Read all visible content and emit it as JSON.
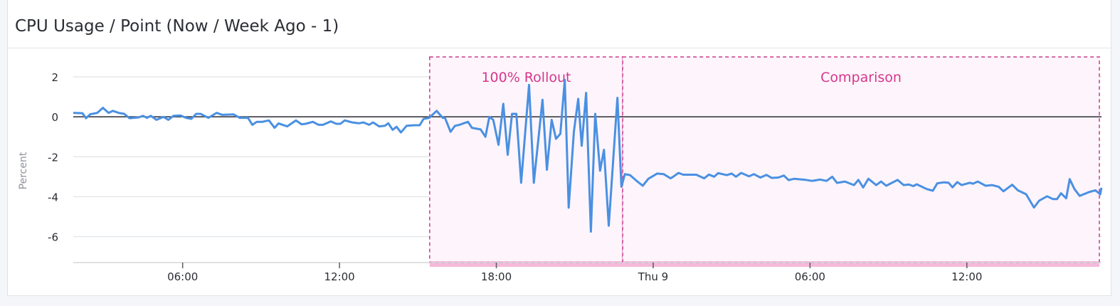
{
  "panel": {
    "title": "CPU Usage / Point (Now / Week Ago - 1)"
  },
  "colors": {
    "series": "#4a90e2",
    "marker": "#c93b8f",
    "marker_text": "#d6368d",
    "marker_fill": "#fdf5fb",
    "marker_band": "#f5b9da",
    "zero_line": "#2a2d33",
    "grid": "#e6e7ea"
  },
  "chart_data": {
    "type": "line",
    "title": "CPU Usage / Point (Now / Week Ago - 1)",
    "ylabel": "Percent",
    "xlabel": "",
    "xlim": [
      "Wed 01:49",
      "Thu 17:09"
    ],
    "ylim": [
      -7.3,
      3.0
    ],
    "grid": true,
    "y_ticks": [
      2,
      0,
      -2,
      -4,
      -6
    ],
    "x_ticks": [
      {
        "t": "Wed 06:00",
        "label": "06:00"
      },
      {
        "t": "Wed 12:00",
        "label": "12:00"
      },
      {
        "t": "Wed 18:00",
        "label": "18:00"
      },
      {
        "t": "Thu 00:00",
        "label": "Thu 9"
      },
      {
        "t": "Thu 06:00",
        "label": "06:00"
      },
      {
        "t": "Thu 12:00",
        "label": "12:00"
      }
    ],
    "markers": [
      {
        "label": "100% Rollout",
        "start": "Wed 15:27",
        "end": "Wed 22:50"
      },
      {
        "label": "Comparison",
        "start": "Wed 22:50",
        "end": "Thu 17:05"
      }
    ],
    "reference_line": 0,
    "series": [
      {
        "points": [
          [
            "Wed 01:49",
            0.2
          ],
          [
            "Wed 02:10",
            0.18
          ],
          [
            "Wed 02:18",
            -0.07
          ],
          [
            "Wed 02:28",
            0.13
          ],
          [
            "Wed 02:44",
            0.2
          ],
          [
            "Wed 02:57",
            0.45
          ],
          [
            "Wed 03:10",
            0.2
          ],
          [
            "Wed 03:20",
            0.3
          ],
          [
            "Wed 03:33",
            0.2
          ],
          [
            "Wed 03:46",
            0.15
          ],
          [
            "Wed 03:58",
            -0.07
          ],
          [
            "Wed 04:19",
            -0.03
          ],
          [
            "Wed 04:29",
            0.05
          ],
          [
            "Wed 04:38",
            -0.05
          ],
          [
            "Wed 04:47",
            0.05
          ],
          [
            "Wed 05:00",
            -0.15
          ],
          [
            "Wed 05:16",
            0
          ],
          [
            "Wed 05:27",
            -0.15
          ],
          [
            "Wed 05:39",
            0.05
          ],
          [
            "Wed 05:55",
            0.07
          ],
          [
            "Wed 06:08",
            -0.05
          ],
          [
            "Wed 06:20",
            -0.1
          ],
          [
            "Wed 06:31",
            0.15
          ],
          [
            "Wed 06:41",
            0.15
          ],
          [
            "Wed 06:59",
            -0.05
          ],
          [
            "Wed 07:18",
            0.2
          ],
          [
            "Wed 07:31",
            0.1
          ],
          [
            "Wed 07:57",
            0.12
          ],
          [
            "Wed 08:11",
            -0.05
          ],
          [
            "Wed 08:30",
            -0.05
          ],
          [
            "Wed 08:40",
            -0.4
          ],
          [
            "Wed 08:50",
            -0.25
          ],
          [
            "Wed 09:03",
            -0.25
          ],
          [
            "Wed 09:18",
            -0.18
          ],
          [
            "Wed 09:31",
            -0.55
          ],
          [
            "Wed 09:40",
            -0.33
          ],
          [
            "Wed 10:00",
            -0.48
          ],
          [
            "Wed 10:20",
            -0.18
          ],
          [
            "Wed 10:33",
            -0.37
          ],
          [
            "Wed 10:42",
            -0.35
          ],
          [
            "Wed 10:59",
            -0.25
          ],
          [
            "Wed 11:12",
            -0.4
          ],
          [
            "Wed 11:22",
            -0.4
          ],
          [
            "Wed 11:40",
            -0.23
          ],
          [
            "Wed 11:53",
            -0.35
          ],
          [
            "Wed 12:02",
            -0.35
          ],
          [
            "Wed 12:12",
            -0.18
          ],
          [
            "Wed 12:29",
            -0.28
          ],
          [
            "Wed 12:45",
            -0.32
          ],
          [
            "Wed 12:55",
            -0.28
          ],
          [
            "Wed 13:08",
            -0.4
          ],
          [
            "Wed 13:17",
            -0.28
          ],
          [
            "Wed 13:31",
            -0.48
          ],
          [
            "Wed 13:44",
            -0.45
          ],
          [
            "Wed 13:52",
            -0.32
          ],
          [
            "Wed 14:02",
            -0.65
          ],
          [
            "Wed 14:11",
            -0.5
          ],
          [
            "Wed 14:21",
            -0.78
          ],
          [
            "Wed 14:34",
            -0.45
          ],
          [
            "Wed 14:51",
            -0.42
          ],
          [
            "Wed 15:04",
            -0.42
          ],
          [
            "Wed 15:13",
            -0.1
          ],
          [
            "Wed 15:26",
            -0.05
          ],
          [
            "Wed 15:43",
            0.3
          ],
          [
            "Wed 15:57",
            -0.05
          ],
          [
            "Wed 16:02",
            -0.05
          ],
          [
            "Wed 16:15",
            -0.75
          ],
          [
            "Wed 16:25",
            -0.45
          ],
          [
            "Wed 16:35",
            -0.4
          ],
          [
            "Wed 16:55",
            -0.25
          ],
          [
            "Wed 17:04",
            -0.55
          ],
          [
            "Wed 17:24",
            -0.63
          ],
          [
            "Wed 17:35",
            -1.0
          ],
          [
            "Wed 17:44",
            0
          ],
          [
            "Wed 17:53",
            -0.15
          ],
          [
            "Wed 18:05",
            -1.4
          ],
          [
            "Wed 18:16",
            0.65
          ],
          [
            "Wed 18:26",
            -1.9
          ],
          [
            "Wed 18:36",
            0.15
          ],
          [
            "Wed 18:46",
            0.15
          ],
          [
            "Wed 18:57",
            -3.3
          ],
          [
            "Wed 19:15",
            1.6
          ],
          [
            "Wed 19:26",
            -3.3
          ],
          [
            "Wed 19:46",
            0.85
          ],
          [
            "Wed 19:56",
            -2.65
          ],
          [
            "Wed 20:07",
            -0.15
          ],
          [
            "Wed 20:17",
            -1.1
          ],
          [
            "Wed 20:27",
            -0.85
          ],
          [
            "Wed 20:37",
            1.85
          ],
          [
            "Wed 20:46",
            -4.55
          ],
          [
            "Wed 20:58",
            -0.75
          ],
          [
            "Wed 21:08",
            0.9
          ],
          [
            "Wed 21:16",
            -1.45
          ],
          [
            "Wed 21:26",
            1.2
          ],
          [
            "Wed 21:37",
            -5.75
          ],
          [
            "Wed 21:47",
            0.15
          ],
          [
            "Wed 21:58",
            -2.7
          ],
          [
            "Wed 22:07",
            -1.65
          ],
          [
            "Wed 22:18",
            -5.45
          ],
          [
            "Wed 22:38",
            0.95
          ],
          [
            "Wed 22:47",
            -3.5
          ],
          [
            "Wed 22:55",
            -2.87
          ],
          [
            "Wed 23:07",
            -2.92
          ],
          [
            "Wed 23:22",
            -3.21
          ],
          [
            "Wed 23:36",
            -3.45
          ],
          [
            "Wed 23:49",
            -3.1
          ],
          [
            "Thu 00:09",
            -2.84
          ],
          [
            "Thu 00:24",
            -2.87
          ],
          [
            "Thu 00:40",
            -3.08
          ],
          [
            "Thu 00:46",
            -3.0
          ],
          [
            "Thu 00:58",
            -2.81
          ],
          [
            "Thu 01:09",
            -2.9
          ],
          [
            "Thu 01:39",
            -2.9
          ],
          [
            "Thu 01:57",
            -3.08
          ],
          [
            "Thu 02:08",
            -2.89
          ],
          [
            "Thu 02:20",
            -3.0
          ],
          [
            "Thu 02:29",
            -2.82
          ],
          [
            "Thu 02:49",
            -2.92
          ],
          [
            "Thu 03:00",
            -2.84
          ],
          [
            "Thu 03:10",
            -3.0
          ],
          [
            "Thu 03:22",
            -2.81
          ],
          [
            "Thu 03:40",
            -2.98
          ],
          [
            "Thu 03:51",
            -2.87
          ],
          [
            "Thu 04:06",
            -3.04
          ],
          [
            "Thu 04:20",
            -2.91
          ],
          [
            "Thu 04:32",
            -3.06
          ],
          [
            "Thu 04:47",
            -3.04
          ],
          [
            "Thu 05:00",
            -2.94
          ],
          [
            "Thu 05:11",
            -3.17
          ],
          [
            "Thu 05:24",
            -3.1
          ],
          [
            "Thu 05:50",
            -3.16
          ],
          [
            "Thu 06:05",
            -3.21
          ],
          [
            "Thu 06:23",
            -3.14
          ],
          [
            "Thu 06:38",
            -3.21
          ],
          [
            "Thu 06:51",
            -3.0
          ],
          [
            "Thu 07:02",
            -3.31
          ],
          [
            "Thu 07:20",
            -3.24
          ],
          [
            "Thu 07:41",
            -3.42
          ],
          [
            "Thu 07:51",
            -3.16
          ],
          [
            "Thu 08:02",
            -3.54
          ],
          [
            "Thu 08:14",
            -3.1
          ],
          [
            "Thu 08:32",
            -3.42
          ],
          [
            "Thu 08:43",
            -3.24
          ],
          [
            "Thu 08:55",
            -3.45
          ],
          [
            "Thu 09:21",
            -3.16
          ],
          [
            "Thu 09:35",
            -3.42
          ],
          [
            "Thu 09:47",
            -3.39
          ],
          [
            "Thu 09:57",
            -3.47
          ],
          [
            "Thu 10:05",
            -3.38
          ],
          [
            "Thu 10:28",
            -3.62
          ],
          [
            "Thu 10:42",
            -3.7
          ],
          [
            "Thu 10:52",
            -3.33
          ],
          [
            "Thu 11:07",
            -3.28
          ],
          [
            "Thu 11:18",
            -3.3
          ],
          [
            "Thu 11:27",
            -3.53
          ],
          [
            "Thu 11:38",
            -3.27
          ],
          [
            "Thu 11:48",
            -3.42
          ],
          [
            "Thu 12:07",
            -3.3
          ],
          [
            "Thu 12:14",
            -3.35
          ],
          [
            "Thu 12:25",
            -3.24
          ],
          [
            "Thu 12:43",
            -3.45
          ],
          [
            "Thu 12:58",
            -3.42
          ],
          [
            "Thu 13:13",
            -3.5
          ],
          [
            "Thu 13:24",
            -3.73
          ],
          [
            "Thu 13:44",
            -3.4
          ],
          [
            "Thu 13:57",
            -3.68
          ],
          [
            "Thu 14:16",
            -3.88
          ],
          [
            "Thu 14:34",
            -4.54
          ],
          [
            "Thu 14:46",
            -4.2
          ],
          [
            "Thu 15:04",
            -3.98
          ],
          [
            "Thu 15:18",
            -4.12
          ],
          [
            "Thu 15:27",
            -4.12
          ],
          [
            "Thu 15:36",
            -3.83
          ],
          [
            "Thu 15:48",
            -4.08
          ],
          [
            "Thu 15:56",
            -3.12
          ],
          [
            "Thu 16:07",
            -3.62
          ],
          [
            "Thu 16:19",
            -3.96
          ],
          [
            "Thu 16:40",
            -3.77
          ],
          [
            "Thu 16:55",
            -3.68
          ],
          [
            "Thu 17:06",
            -3.88
          ],
          [
            "Thu 17:09",
            -3.55
          ]
        ]
      }
    ]
  }
}
